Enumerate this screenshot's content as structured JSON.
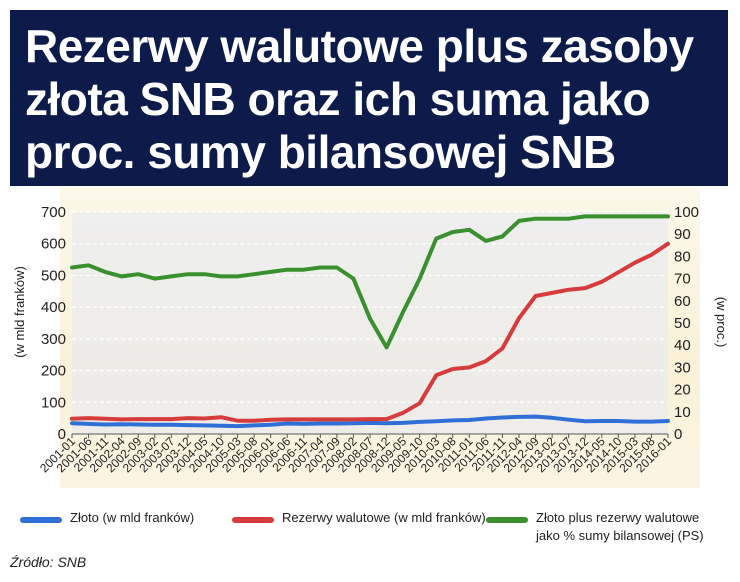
{
  "title": "Rezerwy walutowe plus zasoby złota SNB oraz ich suma jako proc. sumy bilansowej SNB",
  "source": "Źródło: SNB",
  "chart_data": {
    "type": "line",
    "ylabel_left": "(w mld franków)",
    "ylabel_right": "(w proc.)",
    "ylim_left": [
      0,
      700
    ],
    "ylim_right": [
      0,
      100
    ],
    "yticks_left": [
      "0",
      "100",
      "200",
      "300",
      "400",
      "500",
      "600",
      "700"
    ],
    "yticks_right": [
      "0",
      "10",
      "20",
      "30",
      "40",
      "50",
      "60",
      "70",
      "80",
      "90",
      "100"
    ],
    "grid": true,
    "legend_position": "bottom",
    "x_tick_labels": [
      "2001-01",
      "2001-06",
      "2001-11",
      "2002-04",
      "2002-09",
      "2003-02",
      "2003-07",
      "2003-12",
      "2004-05",
      "2004-10",
      "2005-03",
      "2005-08",
      "2006-01",
      "2006-06",
      "2006-11",
      "2007-04",
      "2007-09",
      "2008-02",
      "2008-07",
      "2008-12",
      "2009-05",
      "2009-10",
      "2010-03",
      "2010-08",
      "2011-01",
      "2011-06",
      "2011-11",
      "2012-04",
      "2012-09",
      "2013-02",
      "2013-07",
      "2013-12",
      "2014-05",
      "2014-10",
      "2015-03",
      "2015-08",
      "2016-01"
    ],
    "x": [
      "2001-01",
      "2001-06",
      "2001-11",
      "2002-04",
      "2002-09",
      "2003-02",
      "2003-07",
      "2003-12",
      "2004-05",
      "2004-10",
      "2005-03",
      "2005-08",
      "2006-01",
      "2006-06",
      "2006-11",
      "2007-04",
      "2007-09",
      "2008-02",
      "2008-07",
      "2008-12",
      "2009-05",
      "2009-10",
      "2010-03",
      "2010-08",
      "2011-01",
      "2011-06",
      "2011-11",
      "2012-04",
      "2012-09",
      "2013-02",
      "2013-07",
      "2013-12",
      "2014-05",
      "2014-10",
      "2015-03",
      "2015-08",
      "2016-01"
    ],
    "series": [
      {
        "name": "Złoto (w mld franków)",
        "axis": "left",
        "color": "#2f6fd6",
        "values": [
          34,
          32,
          30,
          31,
          30,
          29,
          29,
          28,
          27,
          26,
          25,
          27,
          29,
          33,
          32,
          33,
          33,
          34,
          35,
          34,
          35,
          38,
          40,
          43,
          44,
          49,
          52,
          54,
          55,
          51,
          45,
          40,
          41,
          41,
          39,
          39,
          41
        ]
      },
      {
        "name": "Rezerwy walutowe (w mld franków)",
        "axis": "left",
        "color": "#d63c3c",
        "values": [
          48,
          50,
          48,
          46,
          47,
          47,
          47,
          50,
          49,
          53,
          42,
          42,
          45,
          46,
          46,
          46,
          46,
          46,
          47,
          47,
          67,
          97,
          185,
          205,
          210,
          230,
          270,
          365,
          435,
          445,
          455,
          460,
          480,
          510,
          540,
          565,
          600
        ]
      },
      {
        "name": "Złoto plus rezerwy walutowe jako % sumy bilansowej (PS)",
        "axis": "right",
        "color": "#3a8f2e",
        "values": [
          75,
          76,
          73,
          71,
          72,
          70,
          71,
          72,
          72,
          71,
          71,
          72,
          73,
          74,
          74,
          75,
          75,
          70,
          52,
          39,
          55,
          70,
          88,
          91,
          92,
          87,
          89,
          96,
          97,
          97,
          97,
          98,
          98,
          98,
          98,
          98,
          98
        ]
      }
    ]
  }
}
